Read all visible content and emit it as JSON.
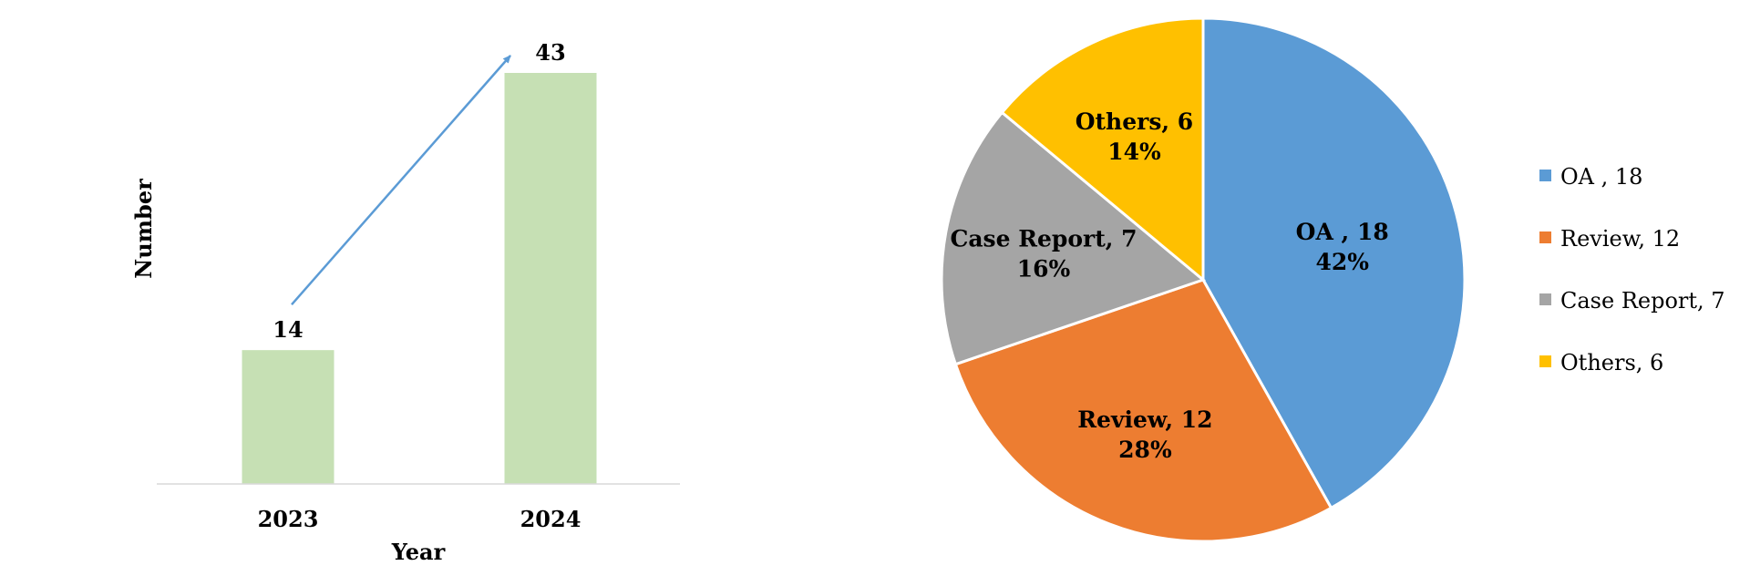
{
  "chart_data": [
    {
      "type": "bar",
      "categories": [
        "2023",
        "2024"
      ],
      "values": [
        14,
        43
      ],
      "data_labels": [
        "14",
        "43"
      ],
      "xlabel": "Year",
      "ylabel": "Number",
      "ylim": [
        0,
        43
      ],
      "grid": false,
      "bar_color": "#c6e0b4",
      "trend_arrow": {
        "from": "2023",
        "to": "2024",
        "color": "#5b9bd5"
      }
    },
    {
      "type": "pie",
      "slices": [
        {
          "name": "OA , 18",
          "value": 18,
          "percent": "42%",
          "color": "#5b9bd5"
        },
        {
          "name": "Review, 12",
          "value": 12,
          "percent": "28%",
          "color": "#ed7d31"
        },
        {
          "name": "Case Report, 7",
          "value": 7,
          "percent": "16%",
          "color": "#a5a5a5"
        },
        {
          "name": "Others, 6",
          "value": 6,
          "percent": "14%",
          "color": "#ffc000"
        }
      ],
      "legend_position": "right"
    }
  ]
}
